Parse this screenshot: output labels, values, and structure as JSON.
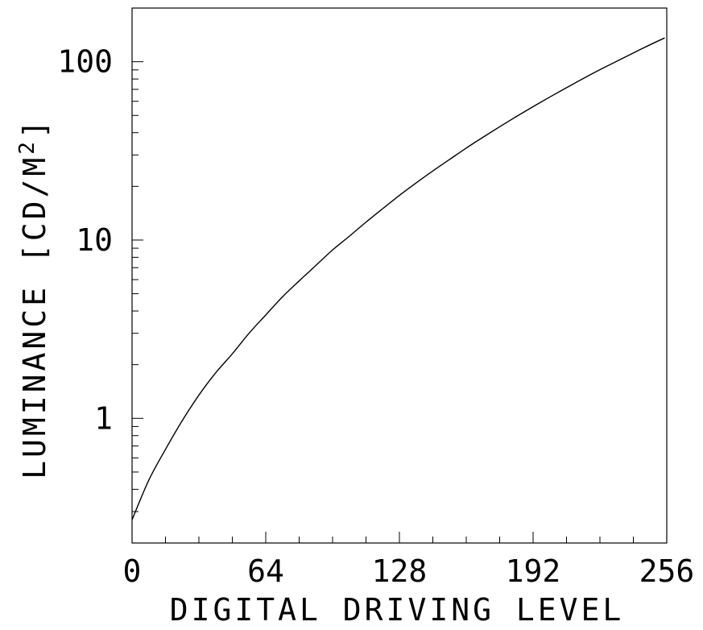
{
  "chart_data": {
    "type": "line",
    "title": "",
    "xlabel": "DIGITAL DRIVING LEVEL",
    "ylabel": "LUMINANCE [CD/M",
    "ylabel_superscript": "2",
    "ylabel_close": "]",
    "x_scale": "linear",
    "y_scale": "log",
    "xlim": [
      0,
      256
    ],
    "ylim": [
      0.2,
      200
    ],
    "grid": false,
    "x_tick_labels": [
      "0",
      "64",
      "128",
      "192",
      "256"
    ],
    "x_ticks": [
      0,
      64,
      128,
      192,
      256
    ],
    "y_tick_labels": [
      "1",
      "10",
      "100"
    ],
    "y_ticks": [
      1,
      10,
      100
    ],
    "line_color": "#000000",
    "series": [
      {
        "x": [
          0,
          8,
          16,
          24,
          32,
          40,
          48,
          56,
          64,
          72,
          80,
          88,
          96,
          104,
          112,
          120,
          128,
          136,
          144,
          152,
          160,
          168,
          176,
          184,
          192,
          200,
          208,
          216,
          224,
          232,
          240,
          248,
          255
        ],
        "y": [
          0.27,
          0.45,
          0.67,
          0.97,
          1.35,
          1.8,
          2.3,
          3.0,
          3.8,
          4.8,
          5.9,
          7.2,
          8.8,
          10.5,
          12.6,
          15.0,
          17.8,
          20.9,
          24.4,
          28.3,
          32.8,
          37.7,
          43.2,
          49.3,
          56.0,
          63.4,
          71.5,
          80.5,
          90.2,
          100.5,
          112.0,
          124.5,
          136.0
        ]
      }
    ]
  }
}
